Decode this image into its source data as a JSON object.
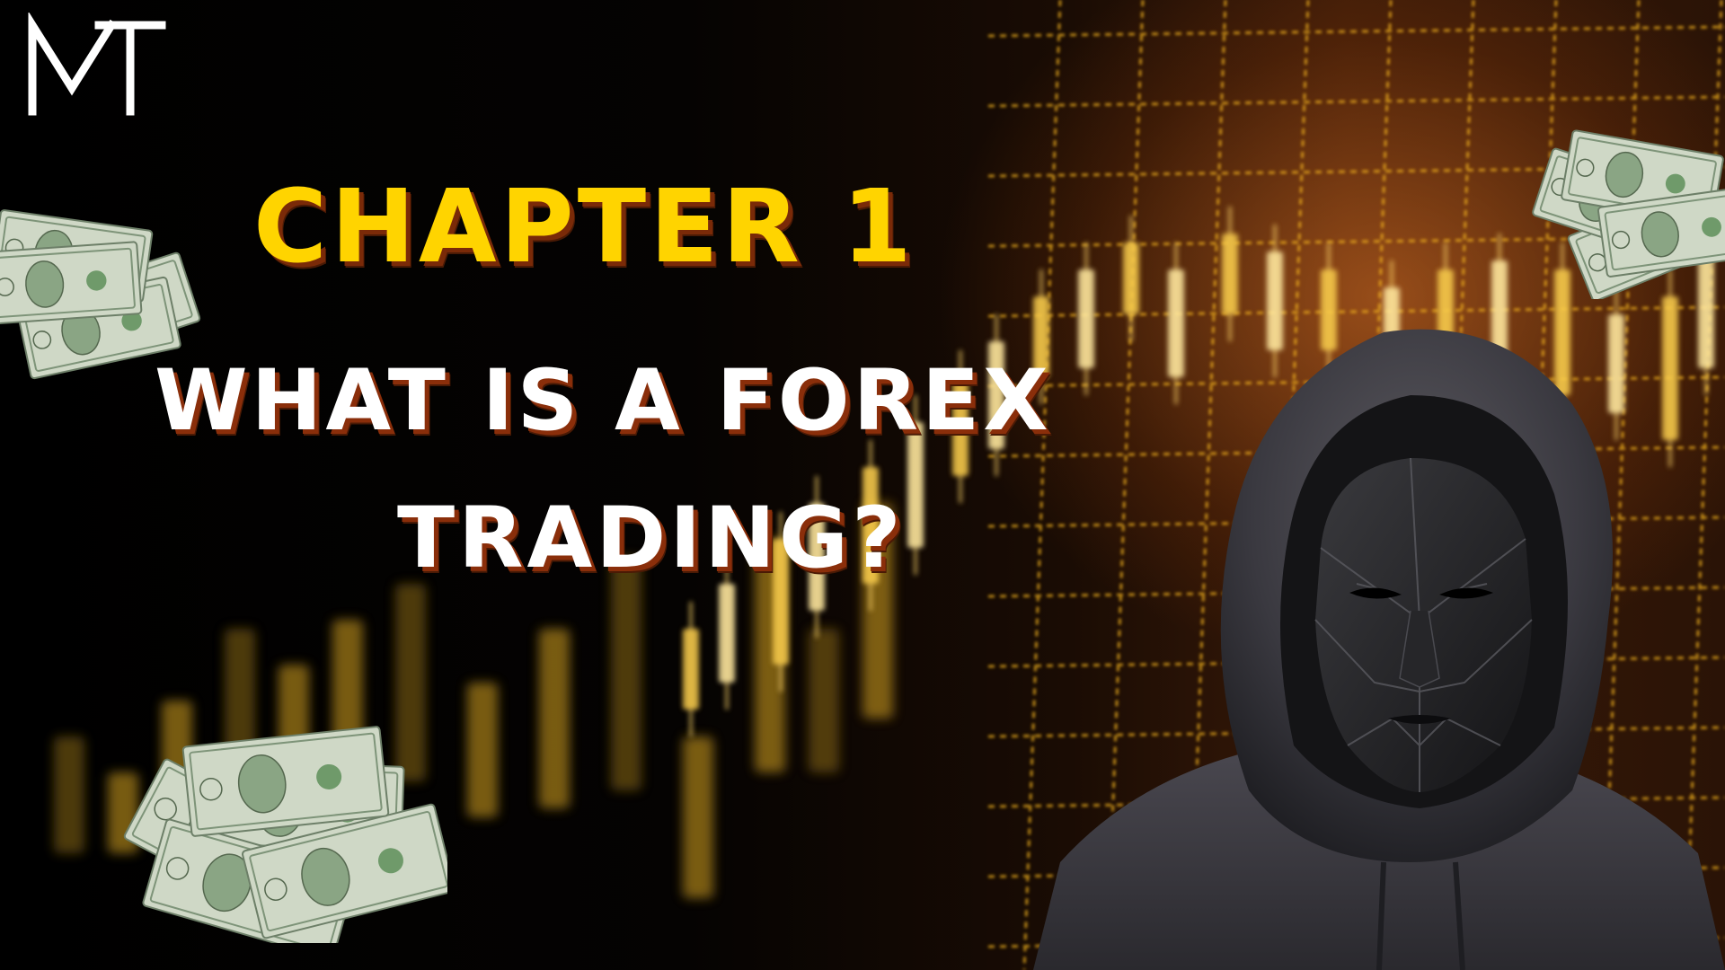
{
  "brand": {
    "logo_text": "MT"
  },
  "headline": {
    "chapter": "CHAPTER 1",
    "line1": "WHAT IS A FOREX",
    "line2": "TRADING?"
  },
  "colors": {
    "chapter_yellow": "#ffd400",
    "title_white": "#ffffff",
    "shadow_brown": "#7a2a08",
    "grid_gold": "#f2b21c",
    "bill_green": "#8aa584"
  },
  "icons": {
    "bills": "dollar-bills-icon",
    "figure": "hooded-masked-figure-icon"
  }
}
